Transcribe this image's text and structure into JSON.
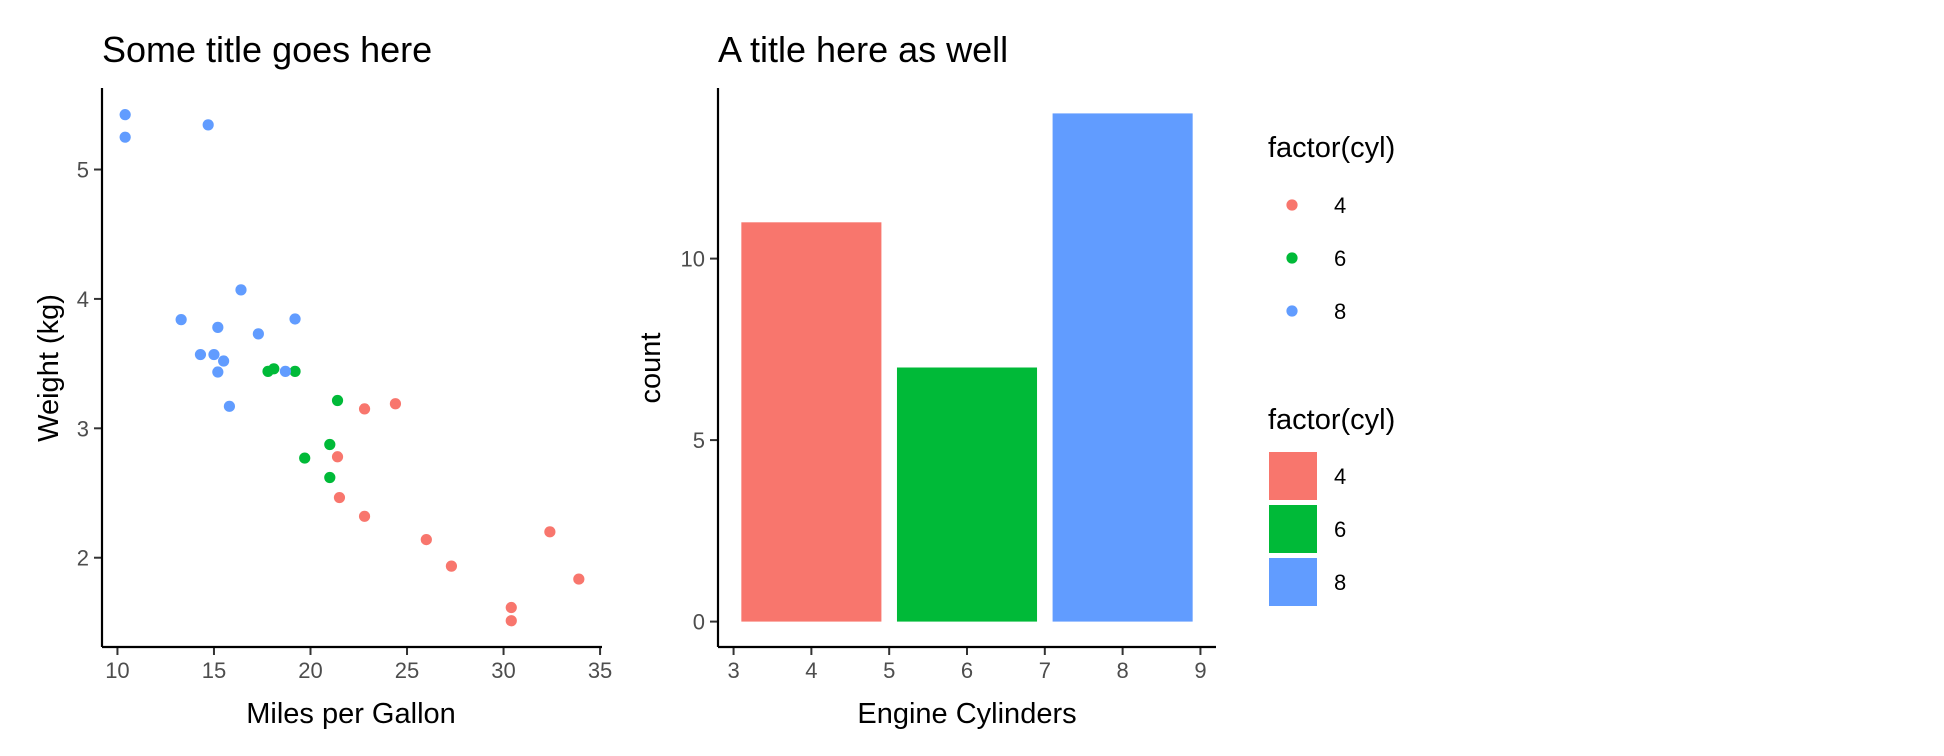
{
  "colors": {
    "4": "#F8766D",
    "6": "#00BA38",
    "8": "#619CFF"
  },
  "chart_data": [
    {
      "type": "scatter",
      "title": "Some title goes here",
      "xlabel": "Miles per Gallon",
      "ylabel": "Weight (kg)",
      "xlim": [
        9.2,
        35.1
      ],
      "ylim": [
        1.31,
        5.63
      ],
      "xticks": [
        10,
        15,
        20,
        25,
        30,
        35
      ],
      "yticks": [
        2,
        3,
        4,
        5
      ],
      "grid": false,
      "series": [
        {
          "name": "4",
          "points": [
            [
              22.8,
              2.32
            ],
            [
              24.4,
              3.19
            ],
            [
              22.8,
              3.15
            ],
            [
              32.4,
              2.2
            ],
            [
              30.4,
              1.615
            ],
            [
              33.9,
              1.835
            ],
            [
              21.5,
              2.465
            ],
            [
              27.3,
              1.935
            ],
            [
              26.0,
              2.14
            ],
            [
              30.4,
              1.513
            ],
            [
              21.4,
              2.78
            ]
          ]
        },
        {
          "name": "6",
          "points": [
            [
              21.0,
              2.62
            ],
            [
              21.0,
              2.875
            ],
            [
              21.4,
              3.215
            ],
            [
              18.1,
              3.46
            ],
            [
              19.2,
              3.44
            ],
            [
              17.8,
              3.44
            ],
            [
              19.7,
              2.77
            ]
          ]
        },
        {
          "name": "8",
          "points": [
            [
              18.7,
              3.44
            ],
            [
              14.3,
              3.57
            ],
            [
              16.4,
              4.07
            ],
            [
              17.3,
              3.73
            ],
            [
              15.2,
              3.78
            ],
            [
              10.4,
              5.25
            ],
            [
              10.4,
              5.424
            ],
            [
              14.7,
              5.345
            ],
            [
              15.5,
              3.52
            ],
            [
              15.2,
              3.435
            ],
            [
              13.3,
              3.84
            ],
            [
              19.2,
              3.845
            ],
            [
              15.8,
              3.17
            ],
            [
              15.0,
              3.57
            ]
          ]
        }
      ]
    },
    {
      "type": "bar",
      "title": "A title here as well",
      "xlabel": "Engine Cylinders",
      "ylabel": "count",
      "xlim": [
        2.8,
        9.2
      ],
      "ylim": [
        -0.7,
        14.7
      ],
      "xticks": [
        3,
        4,
        5,
        6,
        7,
        8,
        9
      ],
      "yticks": [
        0,
        5,
        10
      ],
      "grid": false,
      "bar_width": 1.8,
      "categories": [
        4,
        6,
        8
      ],
      "values": [
        11,
        7,
        14
      ]
    }
  ],
  "legends": [
    {
      "title": "factor(cyl)",
      "kind": "point",
      "labels": [
        "4",
        "6",
        "8"
      ]
    },
    {
      "title": "factor(cyl)",
      "kind": "fill",
      "labels": [
        "4",
        "6",
        "8"
      ]
    }
  ]
}
